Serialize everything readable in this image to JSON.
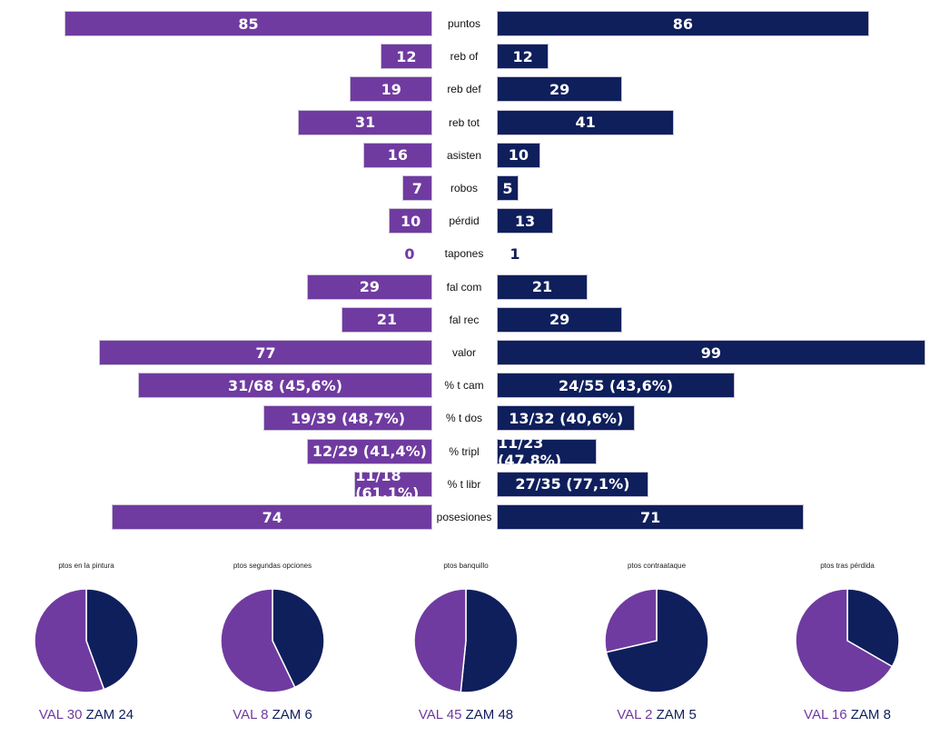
{
  "colors": {
    "left": "#6f3ba0",
    "right": "#0f1f5c"
  },
  "chart_data": [
    {
      "type": "bar",
      "orientation": "horizontal-mirrored",
      "categories": [
        "puntos",
        "reb of",
        "reb def",
        "reb tot",
        "asisten",
        "robos",
        "pérdid",
        "tapones",
        "fal com",
        "fal rec",
        "valor",
        "% t cam",
        "% t dos",
        "% tripl",
        "% t libr",
        "posesiones"
      ],
      "series": [
        {
          "values": [
            85,
            12,
            19,
            31,
            16,
            7,
            10,
            0,
            29,
            21,
            77,
            31,
            19,
            12,
            11,
            74
          ],
          "labels": [
            "85",
            "12",
            "19",
            "31",
            "16",
            "7",
            "10",
            "0",
            "29",
            "21",
            "77",
            "31/68 (45,6%)",
            "19/39 (48,7%)",
            "12/29 (41,4%)",
            "11/18 (61,1%)",
            "74"
          ]
        },
        {
          "values": [
            86,
            12,
            29,
            41,
            10,
            5,
            13,
            1,
            21,
            29,
            99,
            24,
            13,
            11,
            27,
            71
          ],
          "labels": [
            "86",
            "12",
            "29",
            "41",
            "10",
            "5",
            "13",
            "1",
            "21",
            "29",
            "99",
            "24/55 (43,6%)",
            "13/32 (40,6%)",
            "11/23 (47,8%)",
            "27/35 (77,1%)",
            "71"
          ]
        }
      ]
    },
    {
      "type": "pie",
      "title": "ptos en la pintura",
      "slices": [
        {
          "label": "VAL",
          "value": 30
        },
        {
          "label": "ZAM",
          "value": 24
        }
      ]
    },
    {
      "type": "pie",
      "title": "ptos segundas opciones",
      "slices": [
        {
          "label": "VAL",
          "value": 8
        },
        {
          "label": "ZAM",
          "value": 6
        }
      ]
    },
    {
      "type": "pie",
      "title": "ptos banquillo",
      "slices": [
        {
          "label": "VAL",
          "value": 45
        },
        {
          "label": "ZAM",
          "value": 48
        }
      ]
    },
    {
      "type": "pie",
      "title": "ptos contraataque",
      "slices": [
        {
          "label": "VAL",
          "value": 2
        },
        {
          "label": "ZAM",
          "value": 5
        }
      ]
    },
    {
      "type": "pie",
      "title": "ptos tras pérdida",
      "slices": [
        {
          "label": "VAL",
          "value": 16
        },
        {
          "label": "ZAM",
          "value": 8
        }
      ]
    }
  ]
}
